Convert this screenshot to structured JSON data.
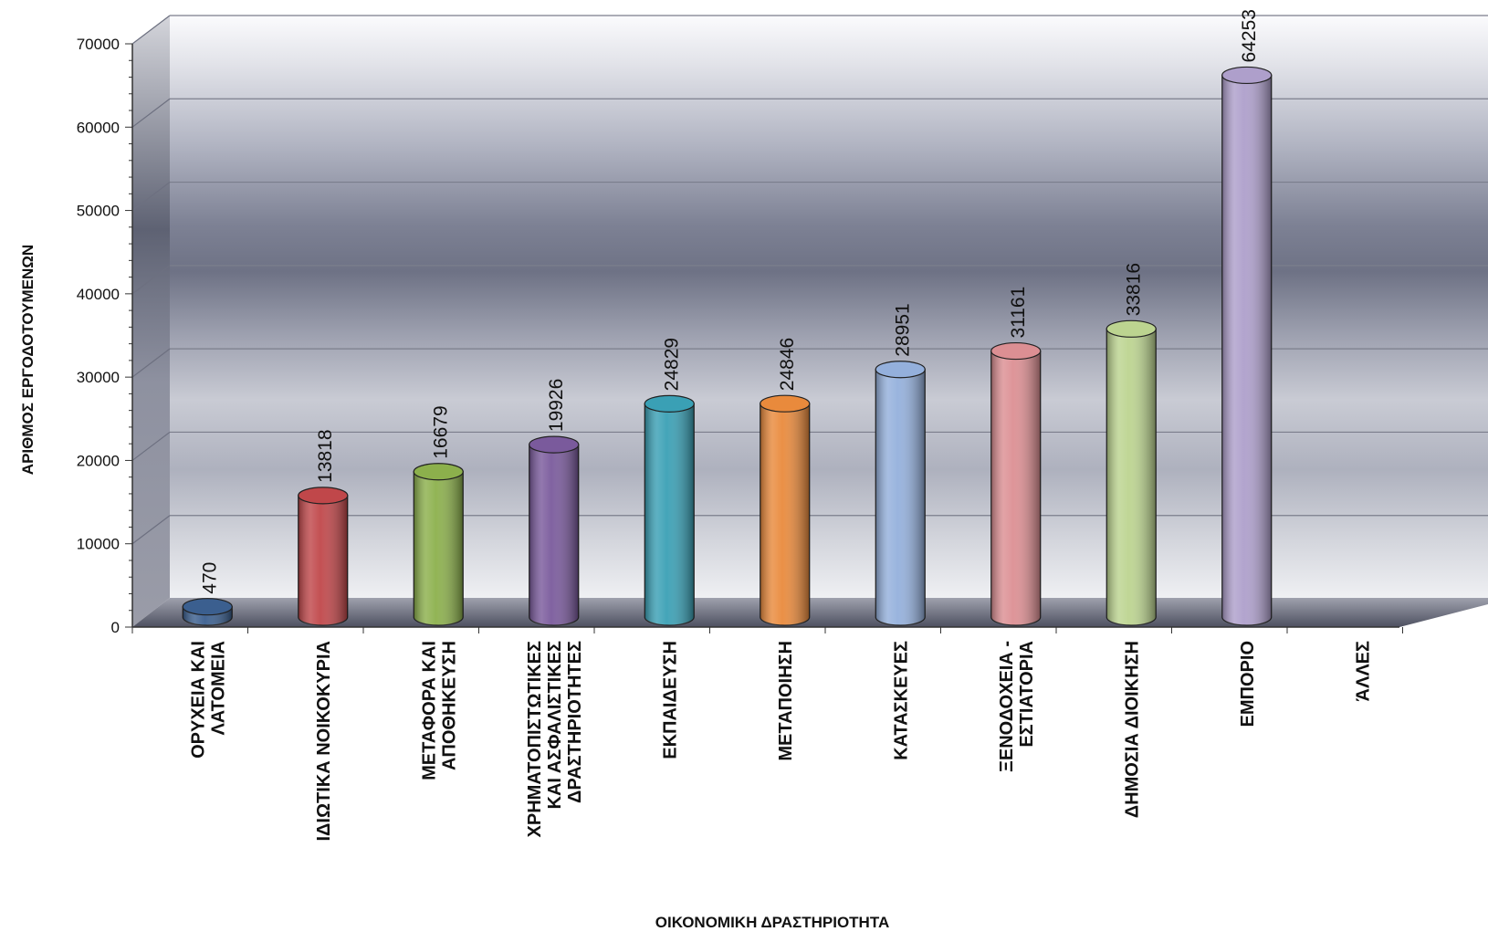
{
  "chart_data": {
    "type": "bar",
    "title": "",
    "xlabel": "ΟΙΚΟΝΟΜΙΚΗ  ΔΡΑΣΤΗΡΙΟΤΗΤΑ",
    "ylabel": "ΑΡΙΘΜΟΣ  ΕΡΓΟΔΟΤΟΥΜΕΝΩΝ",
    "ylim": [
      0,
      70000
    ],
    "yticks": [
      0,
      10000,
      20000,
      30000,
      40000,
      50000,
      60000,
      70000
    ],
    "grid": true,
    "categories": [
      [
        "ΟΡΥΧΕΙΑ ΚΑΙ",
        "ΛΑΤΟΜΕΙΑ"
      ],
      [
        "ΙΔΙΩΤΙΚΑ ΝΟΙΚΟΚΥΡΙΑ"
      ],
      [
        "ΜΕΤΑΦΟΡΑ ΚΑΙ",
        "ΑΠΟΘΗΚΕΥΣΗ"
      ],
      [
        "ΧΡΗΜΑΤΟΠΙΣΤΩΤΙΚΕΣ",
        "ΚΑΙ ΑΣΦΑΛΙΣΤΙΚΕΣ",
        "ΔΡΑΣΤΗΡΙΟΤΗΤΕΣ"
      ],
      [
        "ΕΚΠΑΙΔΕΥΣΗ"
      ],
      [
        "ΜΕΤΑΠΟΙΗΣΗ"
      ],
      [
        "ΚΑΤΑΣΚΕΥΕΣ"
      ],
      [
        "ΞΕΝΟΔΟΧΕΙΑ -",
        "ΕΣΤΙΑΤΟΡΙΑ"
      ],
      [
        "ΔΗΜΟΣΙΑ ΔΙΟΙΚΗΣΗ"
      ],
      [
        "ΕΜΠΟΡΙΟ"
      ],
      [
        "ΆΛΛΕΣ"
      ]
    ],
    "values": [
      470,
      13818,
      16679,
      19926,
      24829,
      24846,
      28951,
      31161,
      33816,
      64253,
      null
    ],
    "value_labels": [
      "470",
      "13818",
      "16679",
      "19926",
      "24829",
      "24846",
      "28951",
      "31161",
      "33816",
      "64253",
      ""
    ],
    "colors": [
      "#3b5f8f",
      "#c0474a",
      "#8cb04c",
      "#7a5a9c",
      "#3aa0b5",
      "#e98a3c",
      "#94b0dc",
      "#dc8f93",
      "#bcd490",
      "#ae9fcb",
      "#999999"
    ]
  }
}
